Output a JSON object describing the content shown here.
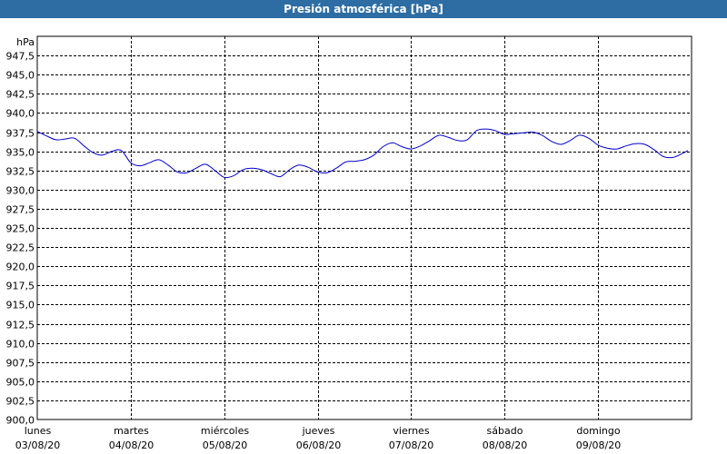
{
  "window": {
    "title": "Presión atmosférica [hPa]"
  },
  "colors": {
    "title_bar": "#2d6da3",
    "series": "#0000cc",
    "grid": "#000000"
  },
  "chart_data": {
    "type": "line",
    "title": "Presión atmosférica [hPa]",
    "ylabel": "hPa",
    "ylim": [
      900,
      950
    ],
    "yticks": [
      "947,5",
      "945,0",
      "942,5",
      "940,0",
      "937,5",
      "935,0",
      "932,5",
      "930,0",
      "927,5",
      "925,0",
      "922,5",
      "920,0",
      "917,5",
      "915,0",
      "912,5",
      "910,0",
      "907,5",
      "905,0",
      "902,5",
      "900,0"
    ],
    "xlim": [
      0,
      7
    ],
    "xticks": [
      {
        "day": "lunes",
        "date": "03/08/20"
      },
      {
        "day": "martes",
        "date": "04/08/20"
      },
      {
        "day": "miércoles",
        "date": "05/08/20"
      },
      {
        "day": "jueves",
        "date": "06/08/20"
      },
      {
        "day": "viernes",
        "date": "07/08/20"
      },
      {
        "day": "sábado",
        "date": "08/08/20"
      },
      {
        "day": "domingo",
        "date": "09/08/20"
      }
    ],
    "grid": true,
    "series": [
      {
        "x": [
          0,
          0.1,
          0.2,
          0.3,
          0.4,
          0.5,
          0.6,
          0.7,
          0.8,
          0.9,
          1.0,
          1.1,
          1.2,
          1.3,
          1.4,
          1.5,
          1.6,
          1.7,
          1.8,
          1.9,
          2.0,
          2.1,
          2.2,
          2.3,
          2.4,
          2.5,
          2.6,
          2.7,
          2.8,
          2.9,
          3.0,
          3.1,
          3.2,
          3.3,
          3.4,
          3.5,
          3.6,
          3.7,
          3.8,
          3.9,
          4.0,
          4.1,
          4.2,
          4.3,
          4.4,
          4.5,
          4.6,
          4.7,
          4.8,
          4.9,
          5.0,
          5.1,
          5.2,
          5.3,
          5.4,
          5.5,
          5.6,
          5.7,
          5.8,
          5.9,
          6.0,
          6.1,
          6.2,
          6.3,
          6.4,
          6.5,
          6.6,
          6.7,
          6.8,
          6.9,
          6.96
        ],
        "y": [
          937.6,
          937.0,
          936.5,
          936.6,
          936.7,
          935.7,
          934.8,
          934.5,
          935.0,
          935.1,
          933.5,
          933.1,
          933.5,
          933.9,
          933.2,
          932.3,
          932.2,
          932.8,
          933.3,
          932.5,
          931.6,
          931.8,
          932.6,
          932.8,
          932.6,
          932.1,
          931.7,
          932.6,
          933.2,
          932.9,
          932.3,
          932.2,
          932.8,
          933.6,
          933.7,
          933.9,
          934.5,
          935.6,
          936.1,
          935.6,
          935.3,
          935.7,
          936.4,
          937.1,
          936.8,
          936.4,
          936.5,
          937.7,
          937.9,
          937.7,
          937.2,
          937.3,
          937.4,
          937.5,
          937.1,
          936.3,
          935.9,
          936.4,
          937.1,
          936.7,
          935.8,
          935.4,
          935.3,
          935.7,
          936.0,
          935.9,
          935.2,
          934.3,
          934.2,
          934.7,
          935.1
        ]
      }
    ]
  }
}
